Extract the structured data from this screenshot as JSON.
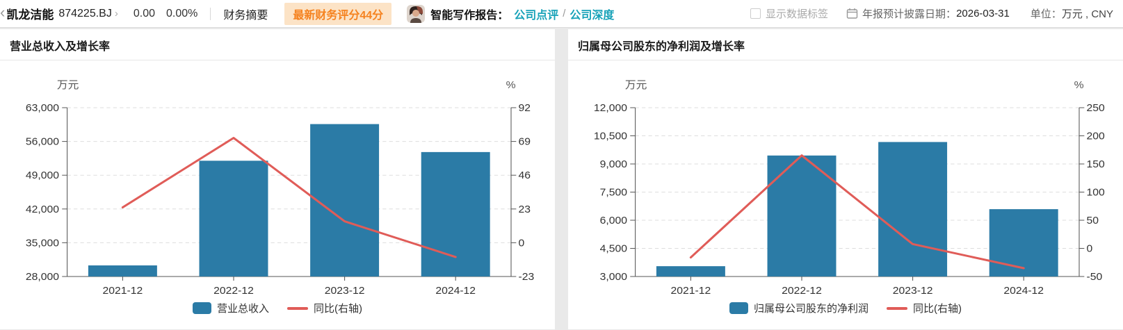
{
  "topbar": {
    "back_icon": "‹",
    "stock_name": "凯龙洁能",
    "stock_code": "874225.BJ",
    "dropdown_icon": "›",
    "price": "0.00",
    "change_pct": "0.00%",
    "summary_tab": "财务摘要",
    "score_badge": "最新财务评分44分",
    "report_label": "智能写作报告：",
    "report_link_1": "公司点评",
    "links_separator": "/",
    "report_link_2": "公司深度",
    "show_labels_checkbox": "显示数据标签",
    "report_date_label": "年报预计披露日期：",
    "report_date": "2026-03-31",
    "unit_label": "单位：",
    "unit_value": "万元 , CNY"
  },
  "colors": {
    "bar": "#2b7ba6",
    "line": "#e05c58",
    "badge_bg": "#fce3c6",
    "badge_text": "#f5821f",
    "link": "#17a2b8",
    "grid": "#dddddd",
    "axis": "#555555",
    "tick_text": "#333333"
  },
  "chart_data": [
    {
      "type": "bar",
      "title": "营业总收入及增长率",
      "left_axis_unit": "万元",
      "right_axis_unit": "%",
      "categories": [
        "2021-12",
        "2022-12",
        "2023-12",
        "2024-12"
      ],
      "series": [
        {
          "name": "营业总收入",
          "type": "bar",
          "axis": "left",
          "values": [
            30300,
            52000,
            59600,
            53800
          ]
        },
        {
          "name": "同比(右轴)",
          "type": "line",
          "axis": "right",
          "values": [
            24.1,
            71.4,
            14.6,
            -9.7
          ]
        }
      ],
      "left_ticks": [
        63000,
        56000,
        49000,
        42000,
        35000,
        28000
      ],
      "right_ticks": [
        92,
        69,
        46,
        23,
        0,
        -23
      ],
      "left_range": [
        28000,
        63000
      ],
      "right_range": [
        -23,
        92
      ],
      "grid": "dashed",
      "legend_position": "bottom"
    },
    {
      "type": "bar",
      "title": "归属母公司股东的净利润及增长率",
      "left_axis_unit": "万元",
      "right_axis_unit": "%",
      "categories": [
        "2021-12",
        "2022-12",
        "2023-12",
        "2024-12"
      ],
      "series": [
        {
          "name": "归属母公司股东的净利润",
          "type": "bar",
          "axis": "left",
          "values": [
            3550,
            9450,
            10170,
            6590
          ]
        },
        {
          "name": "同比(右轴)",
          "type": "line",
          "axis": "right",
          "values": [
            -16.1,
            165.2,
            7.6,
            -35.2
          ]
        }
      ],
      "left_ticks": [
        12000,
        10500,
        9000,
        7500,
        6000,
        4500,
        3000
      ],
      "right_ticks": [
        250,
        200,
        150,
        100,
        50,
        0,
        -50
      ],
      "left_range": [
        3000,
        12000
      ],
      "right_range": [
        -50,
        250
      ],
      "grid": "dashed",
      "legend_position": "bottom"
    }
  ]
}
